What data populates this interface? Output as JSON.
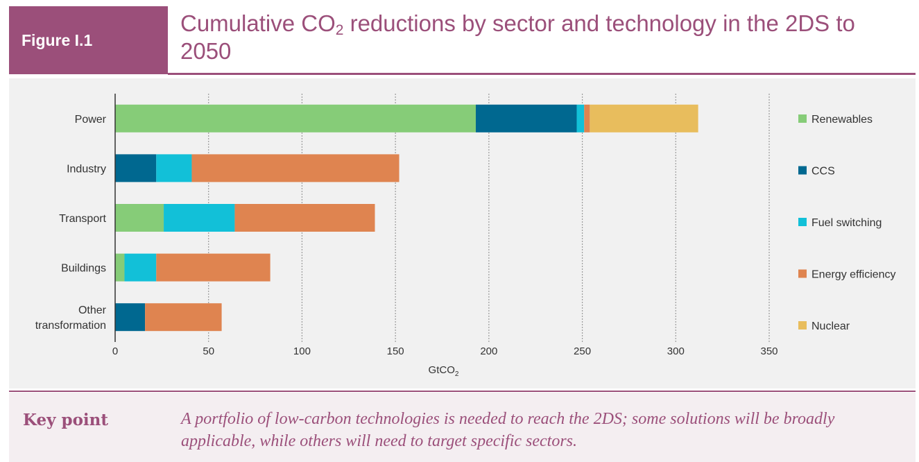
{
  "header": {
    "figure_label": "Figure I.1",
    "title_part1": "Cumulative CO",
    "title_sub": "2",
    "title_part2": " reductions by sector and technology in the 2DS to 2050"
  },
  "chart_data": {
    "type": "bar",
    "orientation": "horizontal",
    "stacked": true,
    "categories": [
      "Power",
      "Industry",
      "Transport",
      "Buildings",
      "Other transformation"
    ],
    "category_lines": [
      [
        "Power"
      ],
      [
        "Industry"
      ],
      [
        "Transport"
      ],
      [
        "Buildings"
      ],
      [
        "Other",
        "transformation"
      ]
    ],
    "series": [
      {
        "name": "Renewables",
        "color": "#86cc78",
        "values": [
          193,
          0,
          26,
          5,
          0
        ]
      },
      {
        "name": "CCS",
        "color": "#006890",
        "values": [
          54,
          22,
          0,
          0,
          16
        ]
      },
      {
        "name": "Fuel switching",
        "color": "#12c0d8",
        "values": [
          4,
          19,
          38,
          17,
          0
        ]
      },
      {
        "name": "Energy efficiency",
        "color": "#df8450",
        "values": [
          3,
          111,
          75,
          61,
          41
        ]
      },
      {
        "name": "Nuclear",
        "color": "#e8bd5d",
        "values": [
          58,
          0,
          0,
          0,
          0
        ]
      }
    ],
    "xlim": [
      0,
      350
    ],
    "xticks": [
      0,
      50,
      100,
      150,
      200,
      250,
      300,
      350
    ],
    "xlabel": "GtCO",
    "xlabel_sub": "2",
    "grid": "vertical dashed",
    "legend_position": "right"
  },
  "key_point": {
    "label": "Key point",
    "text": "A portfolio of low-carbon technologies is needed to reach the 2DS; some solutions will be broadly applicable, while others will need to target specific sectors."
  }
}
